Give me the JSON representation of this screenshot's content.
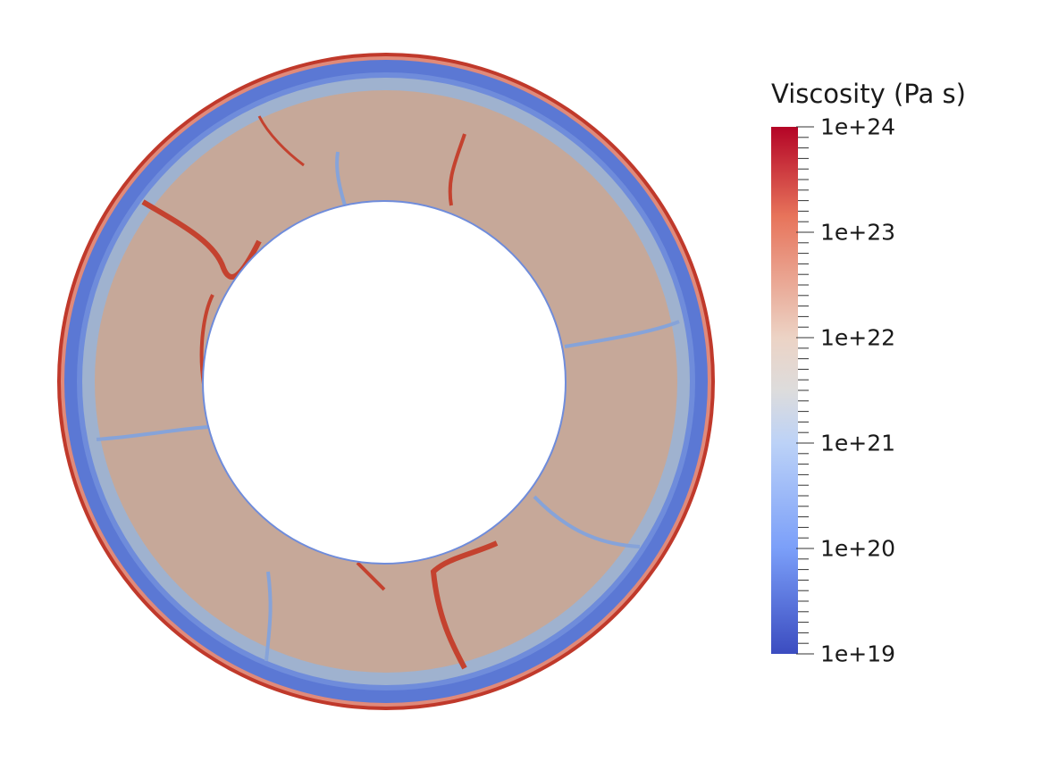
{
  "legend": {
    "title": "Viscosity (Pa s)",
    "ticks": [
      "1e+24",
      "1e+23",
      "1e+22",
      "1e+21",
      "1e+20",
      "1e+19"
    ],
    "colormap": [
      "#b40426",
      "#e7745b",
      "#e8c5b3",
      "#dddcdc",
      "#bcd2f7",
      "#84a7fc",
      "#3b4cc0"
    ]
  },
  "colors": {
    "interior": "#c6a899",
    "lithosphere": "#9fb2cf",
    "weak_layer": "#5876d6",
    "crust": "#c0392b",
    "strong_streak": "#c4422f",
    "weak_streak": "#86a3d9"
  }
}
